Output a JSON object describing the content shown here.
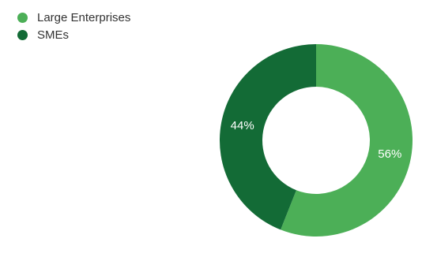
{
  "chart_data": {
    "type": "pie",
    "variant": "donut",
    "categories": [
      "Large Enterprises",
      "SMEs"
    ],
    "values": [
      56,
      44
    ],
    "labels": [
      "56%",
      "44%"
    ],
    "colors": [
      "#4caf57",
      "#136b36"
    ],
    "legend": {
      "position": "top-left",
      "items": [
        {
          "label": "Large Enterprises",
          "color": "#4caf57"
        },
        {
          "label": "SMEs",
          "color": "#136b36"
        }
      ]
    }
  }
}
